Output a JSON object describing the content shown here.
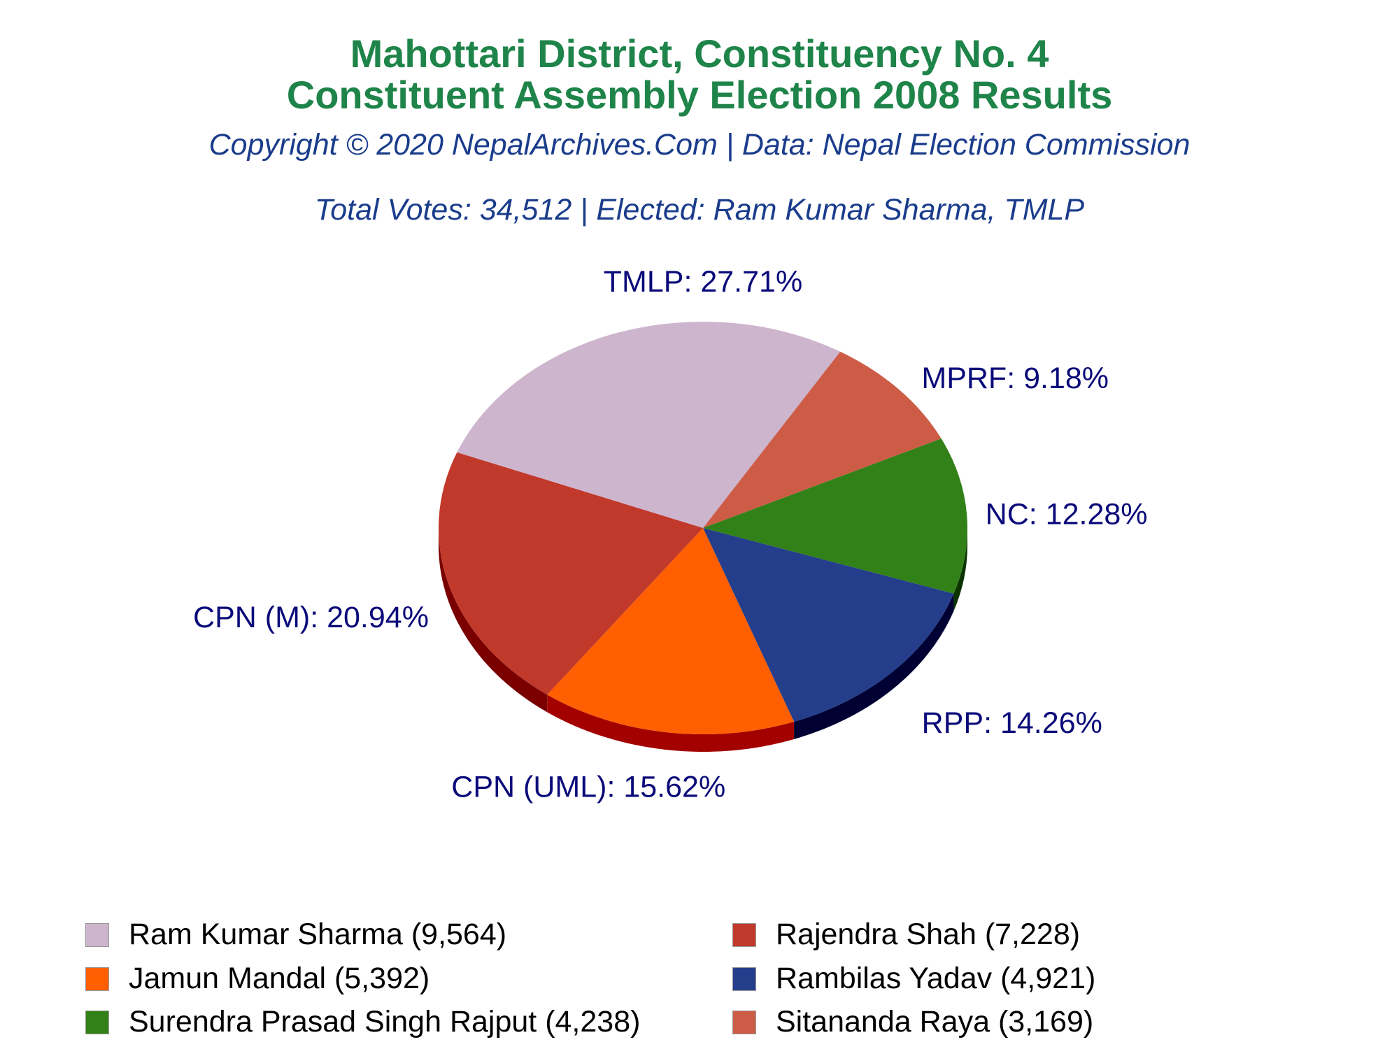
{
  "header": {
    "title_line1": "Mahottari District, Constituency No. 4",
    "title_line2": "Constituent Assembly Election 2008 Results",
    "copyright": "Copyright © 2020 NepalArchives.Com | Data: Nepal Election Commission",
    "summary": "Total Votes: 34,512 | Elected: Ram Kumar Sharma, TMLP"
  },
  "colors": {
    "title": "#1e8449",
    "subtitle": "#1a3c8c",
    "slice_label": "#0a0a7a"
  },
  "chart_data": {
    "type": "pie",
    "title": "Mahottari District, Constituency No. 4 Constituent Assembly Election 2008 Results",
    "total_votes": 34512,
    "slices": [
      {
        "party": "TMLP",
        "percent": 27.71,
        "label": "TMLP: 27.71%",
        "color": "#cdb5cd",
        "side_color": "#a38fa3"
      },
      {
        "party": "MPRF",
        "percent": 9.18,
        "label": "MPRF: 9.18%",
        "color": "#cd5c47",
        "side_color": "#8b2e22"
      },
      {
        "party": "NC",
        "percent": 12.28,
        "label": "NC: 12.28%",
        "color": "#328118",
        "side_color": "#0a3300"
      },
      {
        "party": "RPP",
        "percent": 14.26,
        "label": "RPP: 14.26%",
        "color": "#253e8b",
        "side_color": "#000033"
      },
      {
        "party": "CPN (UML)",
        "percent": 15.62,
        "label": "CPN (UML): 15.62%",
        "color": "#ff5f00",
        "side_color": "#a30000"
      },
      {
        "party": "CPN (M)",
        "percent": 20.94,
        "label": "CPN (M): 20.94%",
        "color": "#c0392b",
        "side_color": "#7a0000"
      }
    ],
    "legend": [
      {
        "label": "Ram Kumar Sharma (9,564)",
        "candidate": "Ram Kumar Sharma",
        "votes": 9564,
        "color": "#cdb5cd"
      },
      {
        "label": "Rajendra Shah (7,228)",
        "candidate": "Rajendra Shah",
        "votes": 7228,
        "color": "#c0392b"
      },
      {
        "label": "Jamun Mandal (5,392)",
        "candidate": "Jamun Mandal",
        "votes": 5392,
        "color": "#ff5f00"
      },
      {
        "label": "Rambilas Yadav (4,921)",
        "candidate": "Rambilas Yadav",
        "votes": 4921,
        "color": "#253e8b"
      },
      {
        "label": "Surendra Prasad Singh Rajput (4,238)",
        "candidate": "Surendra Prasad Singh Rajput",
        "votes": 4238,
        "color": "#328118"
      },
      {
        "label": "Sitananda Raya (3,169)",
        "candidate": "Sitananda Raya",
        "votes": 3169,
        "color": "#cd5c47"
      }
    ],
    "legend_placement": "bottom",
    "style": "3d"
  }
}
